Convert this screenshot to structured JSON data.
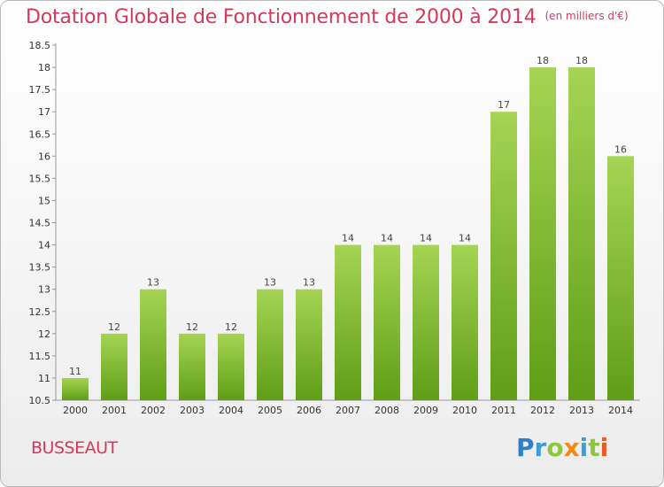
{
  "title": "Dotation Globale de Fonctionnement de 2000 à 2014",
  "unit": "(en milliers d'€)",
  "commune": "BUSSEAUT",
  "logo": {
    "p": "P",
    "r": "r",
    "o": "o",
    "x": "x",
    "i1": "i",
    "t": "t",
    "i2": "i"
  },
  "colors": {
    "title": "#d6385b",
    "bar_top": "#a6d454",
    "bar_bottom": "#5f9e16"
  },
  "chart_data": {
    "type": "bar",
    "categories": [
      "2000",
      "2001",
      "2002",
      "2003",
      "2004",
      "2005",
      "2006",
      "2007",
      "2008",
      "2009",
      "2010",
      "2011",
      "2012",
      "2013",
      "2014"
    ],
    "values": [
      11,
      12,
      13,
      12,
      12,
      13,
      13,
      14,
      14,
      14,
      14,
      17,
      18,
      18,
      16
    ],
    "ylim": [
      10.5,
      18.5
    ],
    "yticks": [
      "10.5",
      "11",
      "11.5",
      "12",
      "12.5",
      "13",
      "13.5",
      "14",
      "14.5",
      "15",
      "15.5",
      "16",
      "16.5",
      "17",
      "17.5",
      "18",
      "18.5"
    ],
    "grid": false,
    "data_labels": true
  }
}
